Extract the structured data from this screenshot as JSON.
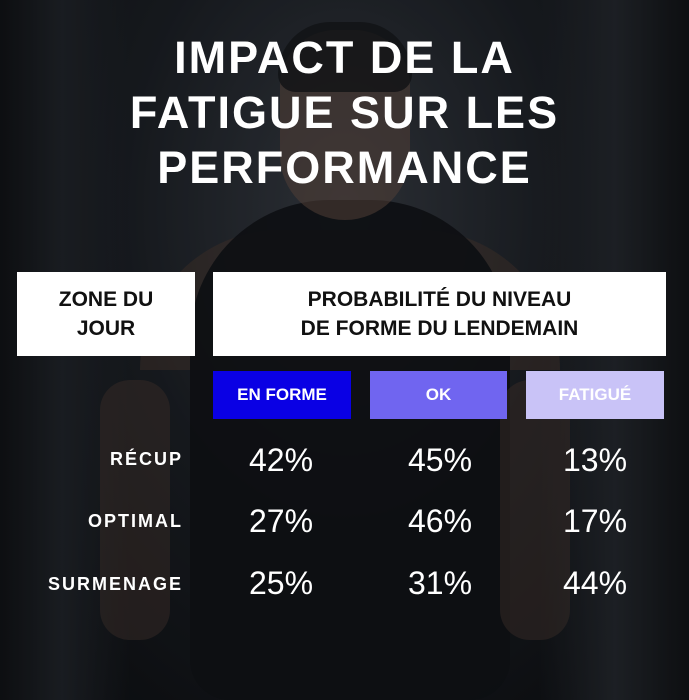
{
  "title_lines": [
    "IMPACT DE LA",
    "FATIGUE SUR LES",
    "PERFORMANCE"
  ],
  "table": {
    "row_header_lines": [
      "ZONE DU",
      "JOUR"
    ],
    "column_group_lines": [
      "PROBABILITÉ DU NIVEAU",
      "DE FORME DU LENDEMAIN"
    ]
  },
  "colors": {
    "en_forme": "#0a00e4",
    "ok": "#7065f0",
    "fatigue": "#c9c3f7",
    "header_bg": "#ffffff",
    "header_text": "#111111"
  },
  "chart_data": {
    "type": "table",
    "title": "IMPACT DE LA FATIGUE SUR LES PERFORMANCE",
    "categories": [
      "EN FORME",
      "OK",
      "FATIGUÉ"
    ],
    "rows": [
      {
        "label": "RÉCUP",
        "values": [
          "42%",
          "45%",
          "13%"
        ]
      },
      {
        "label": "OPTIMAL",
        "values": [
          "27%",
          "46%",
          "17%"
        ]
      },
      {
        "label": "SURMENAGE",
        "values": [
          "25%",
          "31%",
          "44%"
        ]
      }
    ]
  }
}
